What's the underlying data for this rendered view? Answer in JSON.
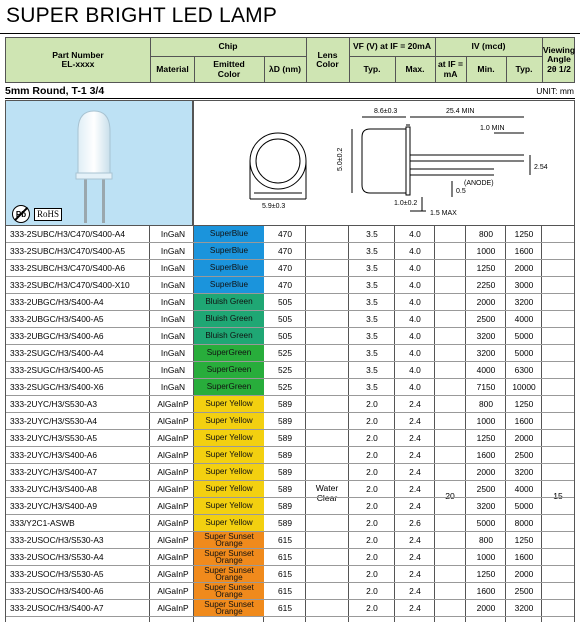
{
  "title": "SUPER BRIGHT LED LAMP",
  "header": {
    "part_number": "Part Number",
    "part_number_sub": "EL-xxxx",
    "chip": "Chip",
    "material": "Material",
    "emitted_color": "Emitted Color",
    "wavelength": "λD (nm)",
    "lens_color": "Lens Color",
    "vf": "VF (V) at IF = 20mA",
    "vf_typ": "Typ.",
    "vf_max": "Max.",
    "iv": "IV (mcd)",
    "at_if": "at IF = mA",
    "iv_min": "Min.",
    "iv_typ": "Typ.",
    "viewing_angle": "Viewing Angle 2θ 1/2"
  },
  "section": {
    "title": "5mm Round, T-1 3/4",
    "unit": "UNIT: mm"
  },
  "image": {
    "badge_pb": "Pb",
    "badge_rohs": "RoHS"
  },
  "drawing": {
    "dim_diameter": "5.9±0.3",
    "dim_length": "8.6±0.3",
    "dim_width": "5.0±0.2",
    "dim_lead_min": "25.4 MIN",
    "dim_1min": "1.0 MIN",
    "dim_254": "2.54",
    "dim_05": "0.5",
    "dim_10": "1.0±0.2",
    "dim_15max": "1.5 MAX",
    "anode": "(ANODE)"
  },
  "spans": {
    "lens": "Water Clear",
    "at_if": "20",
    "angle": "15"
  },
  "colors": {
    "SuperBlue": "#1b94dc",
    "Bluish Green": "#1fa774",
    "SuperGreen": "#28ad3b",
    "Super Yellow": "#f3d010",
    "Super Sunset Orange": "#f08a1c"
  },
  "rows": [
    {
      "pn": "333-2SUBC/H3/C470/S400-A4",
      "mat": "InGaN",
      "color": "SuperBlue",
      "wl": "470",
      "typ": "3.5",
      "max": "4.0",
      "min": "800",
      "ty": "1250"
    },
    {
      "pn": "333-2SUBC/H3/C470/S400-A5",
      "mat": "InGaN",
      "color": "SuperBlue",
      "wl": "470",
      "typ": "3.5",
      "max": "4.0",
      "min": "1000",
      "ty": "1600"
    },
    {
      "pn": "333-2SUBC/H3/C470/S400-A6",
      "mat": "InGaN",
      "color": "SuperBlue",
      "wl": "470",
      "typ": "3.5",
      "max": "4.0",
      "min": "1250",
      "ty": "2000"
    },
    {
      "pn": "333-2SUBC/H3/C470/S400-X10",
      "mat": "InGaN",
      "color": "SuperBlue",
      "wl": "470",
      "typ": "3.5",
      "max": "4.0",
      "min": "2250",
      "ty": "3000"
    },
    {
      "pn": "333-2UBGC/H3/S400-A4",
      "mat": "InGaN",
      "color": "Bluish Green",
      "wl": "505",
      "typ": "3.5",
      "max": "4.0",
      "min": "2000",
      "ty": "3200"
    },
    {
      "pn": "333-2UBGC/H3/S400-A5",
      "mat": "InGaN",
      "color": "Bluish Green",
      "wl": "505",
      "typ": "3.5",
      "max": "4.0",
      "min": "2500",
      "ty": "4000"
    },
    {
      "pn": "333-2UBGC/H3/S400-A6",
      "mat": "InGaN",
      "color": "Bluish Green",
      "wl": "505",
      "typ": "3.5",
      "max": "4.0",
      "min": "3200",
      "ty": "5000"
    },
    {
      "pn": "333-2SUGC/H3/S400-A4",
      "mat": "InGaN",
      "color": "SuperGreen",
      "wl": "525",
      "typ": "3.5",
      "max": "4.0",
      "min": "3200",
      "ty": "5000"
    },
    {
      "pn": "333-2SUGC/H3/S400-A5",
      "mat": "InGaN",
      "color": "SuperGreen",
      "wl": "525",
      "typ": "3.5",
      "max": "4.0",
      "min": "4000",
      "ty": "6300"
    },
    {
      "pn": "333-2SUGC/H3/S400-X6",
      "mat": "InGaN",
      "color": "SuperGreen",
      "wl": "525",
      "typ": "3.5",
      "max": "4.0",
      "min": "7150",
      "ty": "10000"
    },
    {
      "pn": "333-2UYC/H3/S530-A3",
      "mat": "AlGaInP",
      "color": "Super Yellow",
      "wl": "589",
      "typ": "2.0",
      "max": "2.4",
      "min": "800",
      "ty": "1250"
    },
    {
      "pn": "333-2UYC/H3/S530-A4",
      "mat": "AlGaInP",
      "color": "Super Yellow",
      "wl": "589",
      "typ": "2.0",
      "max": "2.4",
      "min": "1000",
      "ty": "1600"
    },
    {
      "pn": "333-2UYC/H3/S530-A5",
      "mat": "AlGaInP",
      "color": "Super Yellow",
      "wl": "589",
      "typ": "2.0",
      "max": "2.4",
      "min": "1250",
      "ty": "2000"
    },
    {
      "pn": "333-2UYC/H3/S400-A6",
      "mat": "AlGaInP",
      "color": "Super Yellow",
      "wl": "589",
      "typ": "2.0",
      "max": "2.4",
      "min": "1600",
      "ty": "2500"
    },
    {
      "pn": "333-2UYC/H3/S400-A7",
      "mat": "AlGaInP",
      "color": "Super Yellow",
      "wl": "589",
      "typ": "2.0",
      "max": "2.4",
      "min": "2000",
      "ty": "3200"
    },
    {
      "pn": "333-2UYC/H3/S400-A8",
      "mat": "AlGaInP",
      "color": "Super Yellow",
      "wl": "589",
      "typ": "2.0",
      "max": "2.4",
      "min": "2500",
      "ty": "4000"
    },
    {
      "pn": "333-2UYC/H3/S400-A9",
      "mat": "AlGaInP",
      "color": "Super Yellow",
      "wl": "589",
      "typ": "2.0",
      "max": "2.4",
      "min": "3200",
      "ty": "5000"
    },
    {
      "pn": "333/Y2C1-ASWB",
      "mat": "AlGaInP",
      "color": "Super Yellow",
      "wl": "589",
      "typ": "2.0",
      "max": "2.6",
      "min": "5000",
      "ty": "8000"
    },
    {
      "pn": "333-2USOC/H3/S530-A3",
      "mat": "AlGaInP",
      "color": "Super Sunset Orange",
      "wl": "615",
      "typ": "2.0",
      "max": "2.4",
      "min": "800",
      "ty": "1250"
    },
    {
      "pn": "333-2USOC/H3/S530-A4",
      "mat": "AlGaInP",
      "color": "Super Sunset Orange",
      "wl": "615",
      "typ": "2.0",
      "max": "2.4",
      "min": "1000",
      "ty": "1600"
    },
    {
      "pn": "333-2USOC/H3/S530-A5",
      "mat": "AlGaInP",
      "color": "Super Sunset Orange",
      "wl": "615",
      "typ": "2.0",
      "max": "2.4",
      "min": "1250",
      "ty": "2000"
    },
    {
      "pn": "333-2USOC/H3/S400-A6",
      "mat": "AlGaInP",
      "color": "Super Sunset Orange",
      "wl": "615",
      "typ": "2.0",
      "max": "2.4",
      "min": "1600",
      "ty": "2500"
    },
    {
      "pn": "333-2USOC/H3/S400-A7",
      "mat": "AlGaInP",
      "color": "Super Sunset Orange",
      "wl": "615",
      "typ": "2.0",
      "max": "2.4",
      "min": "2000",
      "ty": "3200"
    }
  ]
}
